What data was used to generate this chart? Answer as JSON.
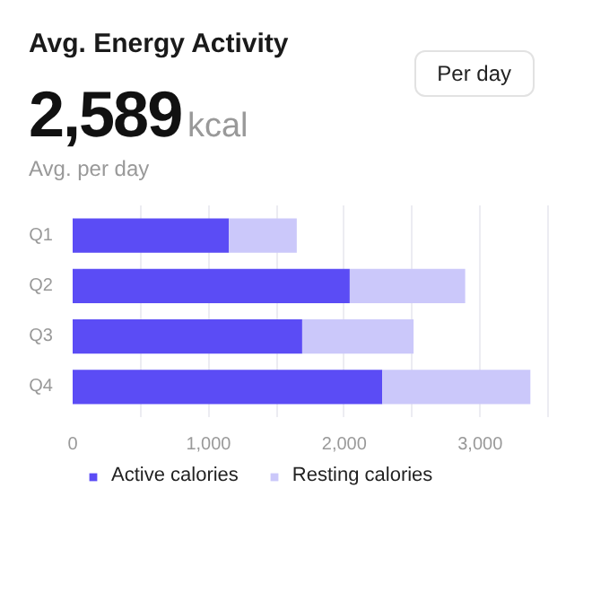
{
  "chart_data": {
    "type": "bar",
    "orientation": "horizontal",
    "stacked": true,
    "title": "Avg. Energy Activity",
    "annotations": [
      "2,589",
      "kcal",
      "Avg. per day",
      "Per day"
    ],
    "categories": [
      "Q1",
      "Q2",
      "Q3",
      "Q4"
    ],
    "series": [
      {
        "name": "Active calories",
        "color": "#5b4cf5",
        "values": [
          1150,
          2040,
          1690,
          2280
        ]
      },
      {
        "name": "Resting calories",
        "color": "#cbc8fa",
        "values": [
          500,
          850,
          820,
          1090
        ]
      }
    ],
    "xlim": [
      0,
      3500
    ],
    "xticks": [
      0,
      {
        "value": 500,
        "label": null
      },
      {
        "value": 1000,
        "label": "1,000"
      },
      {
        "value": 1500,
        "label": null
      },
      {
        "value": 2000,
        "label": "2,000"
      },
      {
        "value": 2500,
        "label": null
      },
      {
        "value": 3000,
        "label": "3,000"
      },
      {
        "value": 3500,
        "label": null
      }
    ],
    "grid": "x",
    "legend": "bottom"
  }
}
